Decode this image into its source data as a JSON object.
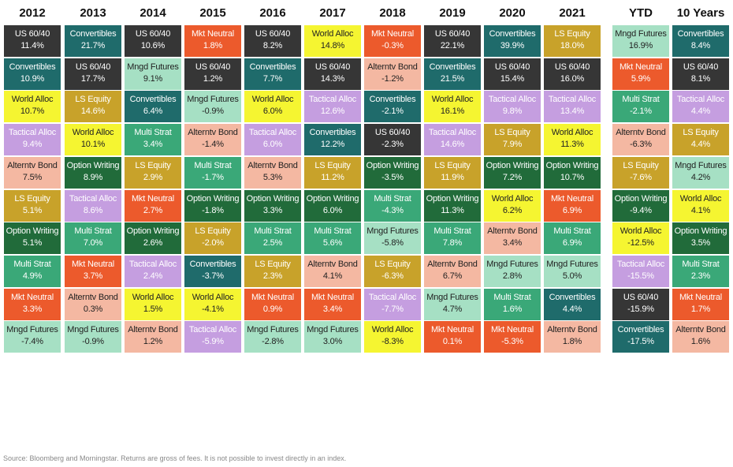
{
  "chart_data": {
    "type": "table",
    "columns": [
      "2012",
      "2013",
      "2014",
      "2015",
      "2016",
      "2017",
      "2018",
      "2019",
      "2020",
      "2021",
      "YTD",
      "10 Years"
    ],
    "rankings": [
      [
        [
          "US 60/40",
          "11.4%"
        ],
        [
          "Convertibles",
          "10.9%"
        ],
        [
          "World Alloc",
          "10.7%"
        ],
        [
          "Tactical Alloc",
          "9.4%"
        ],
        [
          "Alterntv Bond",
          "7.5%"
        ],
        [
          "LS Equity",
          "5.1%"
        ],
        [
          "Option Writing",
          "5.1%"
        ],
        [
          "Multi Strat",
          "4.9%"
        ],
        [
          "Mkt Neutral",
          "3.3%"
        ],
        [
          "Mngd Futures",
          "-7.4%"
        ]
      ],
      [
        [
          "Convertibles",
          "21.7%"
        ],
        [
          "US 60/40",
          "17.7%"
        ],
        [
          "LS Equity",
          "14.6%"
        ],
        [
          "World Alloc",
          "10.1%"
        ],
        [
          "Option Writing",
          "8.9%"
        ],
        [
          "Tactical Alloc",
          "8.6%"
        ],
        [
          "Multi Strat",
          "7.0%"
        ],
        [
          "Mkt Neutral",
          "3.7%"
        ],
        [
          "Alterntv Bond",
          "0.3%"
        ],
        [
          "Mngd Futures",
          "-0.9%"
        ]
      ],
      [
        [
          "US 60/40",
          "10.6%"
        ],
        [
          "Mngd Futures",
          "9.1%"
        ],
        [
          "Convertibles",
          "6.4%"
        ],
        [
          "Multi Strat",
          "3.4%"
        ],
        [
          "LS Equity",
          "2.9%"
        ],
        [
          "Mkt Neutral",
          "2.7%"
        ],
        [
          "Option Writing",
          "2.6%"
        ],
        [
          "Tactical Alloc",
          "2.4%"
        ],
        [
          "World Alloc",
          "1.5%"
        ],
        [
          "Alterntv Bond",
          "1.2%"
        ]
      ],
      [
        [
          "Mkt Neutral",
          "1.8%"
        ],
        [
          "US 60/40",
          "1.2%"
        ],
        [
          "Mngd Futures",
          "-0.9%"
        ],
        [
          "Alterntv Bond",
          "-1.4%"
        ],
        [
          "Multi Strat",
          "-1.7%"
        ],
        [
          "Option Writing",
          "-1.8%"
        ],
        [
          "LS Equity",
          "-2.0%"
        ],
        [
          "Convertibles",
          "-3.7%"
        ],
        [
          "World Alloc",
          "-4.1%"
        ],
        [
          "Tactical Alloc",
          "-5.9%"
        ]
      ],
      [
        [
          "US 60/40",
          "8.2%"
        ],
        [
          "Convertibles",
          "7.7%"
        ],
        [
          "World Alloc",
          "6.0%"
        ],
        [
          "Tactical Alloc",
          "6.0%"
        ],
        [
          "Alterntv Bond",
          "5.3%"
        ],
        [
          "Option Writing",
          "3.3%"
        ],
        [
          "Multi Strat",
          "2.5%"
        ],
        [
          "LS Equity",
          "2.3%"
        ],
        [
          "Mkt Neutral",
          "0.9%"
        ],
        [
          "Mngd Futures",
          "-2.8%"
        ]
      ],
      [
        [
          "World Alloc",
          "14.8%"
        ],
        [
          "US 60/40",
          "14.3%"
        ],
        [
          "Tactical Alloc",
          "12.6%"
        ],
        [
          "Convertibles",
          "12.2%"
        ],
        [
          "LS Equity",
          "11.2%"
        ],
        [
          "Option Writing",
          "6.0%"
        ],
        [
          "Multi Strat",
          "5.6%"
        ],
        [
          "Alterntv Bond",
          "4.1%"
        ],
        [
          "Mkt Neutral",
          "3.4%"
        ],
        [
          "Mngd Futures",
          "3.0%"
        ]
      ],
      [
        [
          "Mkt Neutral",
          "-0.3%"
        ],
        [
          "Alterntv Bond",
          "-1.2%"
        ],
        [
          "Convertibles",
          "-2.1%"
        ],
        [
          "US 60/40",
          "-2.3%"
        ],
        [
          "Option Writing",
          "-3.5%"
        ],
        [
          "Multi Strat",
          "-4.3%"
        ],
        [
          "Mngd Futures",
          "-5.8%"
        ],
        [
          "LS Equity",
          "-6.3%"
        ],
        [
          "Tactical Alloc",
          "-7.7%"
        ],
        [
          "World Alloc",
          "-8.3%"
        ]
      ],
      [
        [
          "US 60/40",
          "22.1%"
        ],
        [
          "Convertibles",
          "21.5%"
        ],
        [
          "World Alloc",
          "16.1%"
        ],
        [
          "Tactical Alloc",
          "14.6%"
        ],
        [
          "LS Equity",
          "11.9%"
        ],
        [
          "Option Writing",
          "11.3%"
        ],
        [
          "Multi Strat",
          "7.8%"
        ],
        [
          "Alterntv Bond",
          "6.7%"
        ],
        [
          "Mngd Futures",
          "4.7%"
        ],
        [
          "Mkt Neutral",
          "0.1%"
        ]
      ],
      [
        [
          "Convertibles",
          "39.9%"
        ],
        [
          "US 60/40",
          "15.4%"
        ],
        [
          "Tactical Alloc",
          "9.8%"
        ],
        [
          "LS Equity",
          "7.9%"
        ],
        [
          "Option Writing",
          "7.2%"
        ],
        [
          "World Alloc",
          "6.2%"
        ],
        [
          "Alterntv Bond",
          "3.4%"
        ],
        [
          "Mngd Futures",
          "2.8%"
        ],
        [
          "Multi Strat",
          "1.6%"
        ],
        [
          "Mkt Neutral",
          "-5.3%"
        ]
      ],
      [
        [
          "LS Equity",
          "18.0%"
        ],
        [
          "US 60/40",
          "16.0%"
        ],
        [
          "Tactical Alloc",
          "13.4%"
        ],
        [
          "World Alloc",
          "11.3%"
        ],
        [
          "Option Writing",
          "10.7%"
        ],
        [
          "Mkt Neutral",
          "6.9%"
        ],
        [
          "Multi Strat",
          "6.9%"
        ],
        [
          "Mngd Futures",
          "5.0%"
        ],
        [
          "Convertibles",
          "4.4%"
        ],
        [
          "Alterntv Bond",
          "1.8%"
        ]
      ],
      [
        [
          "Mngd Futures",
          "16.9%"
        ],
        [
          "Mkt Neutral",
          "5.9%"
        ],
        [
          "Multi Strat",
          "-2.1%"
        ],
        [
          "Alterntv Bond",
          "-6.3%"
        ],
        [
          "LS Equity",
          "-7.6%"
        ],
        [
          "Option Writing",
          "-9.4%"
        ],
        [
          "World Alloc",
          "-12.5%"
        ],
        [
          "Tactical Alloc",
          "-15.5%"
        ],
        [
          "US 60/40",
          "-15.9%"
        ],
        [
          "Convertibles",
          "-17.5%"
        ]
      ],
      [
        [
          "Convertibles",
          "8.4%"
        ],
        [
          "US 60/40",
          "8.1%"
        ],
        [
          "Tactical Alloc",
          "4.4%"
        ],
        [
          "LS Equity",
          "4.4%"
        ],
        [
          "Mngd Futures",
          "4.2%"
        ],
        [
          "World Alloc",
          "4.1%"
        ],
        [
          "Option Writing",
          "3.5%"
        ],
        [
          "Multi Strat",
          "2.3%"
        ],
        [
          "Mkt Neutral",
          "1.7%"
        ],
        [
          "Alterntv Bond",
          "1.6%"
        ]
      ]
    ],
    "colors": {
      "US 60/40": {
        "bg": "#363636",
        "fg": "#ffffff"
      },
      "Convertibles": {
        "bg": "#1f6b6b",
        "fg": "#ffffff"
      },
      "World Alloc": {
        "bg": "#f5f531",
        "fg": "#222222"
      },
      "Tactical Alloc": {
        "bg": "#c59ee0",
        "fg": "#ffffff"
      },
      "Alterntv Bond": {
        "bg": "#f4b8a2",
        "fg": "#222222"
      },
      "LS Equity": {
        "bg": "#c8a22a",
        "fg": "#ffffff"
      },
      "Option Writing": {
        "bg": "#216b3a",
        "fg": "#ffffff"
      },
      "Multi Strat": {
        "bg": "#3aa878",
        "fg": "#ffffff"
      },
      "Mkt Neutral": {
        "bg": "#ec5a2c",
        "fg": "#ffffff"
      },
      "Mngd Futures": {
        "bg": "#a6e0c4",
        "fg": "#222222"
      }
    }
  },
  "footer": "Source: Bloomberg and Morningstar. Returns are gross of fees. It is not possible to invest directly in an index."
}
